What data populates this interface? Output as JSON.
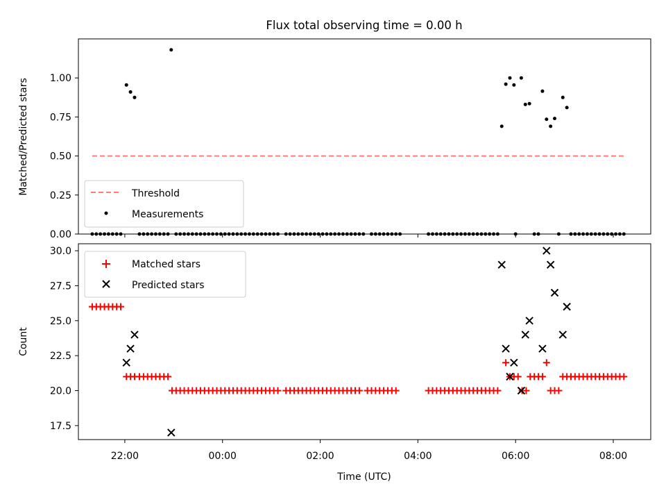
{
  "title": "Flux total observing time = 0.00 h",
  "xlabel": "Time (UTC)",
  "colors": {
    "threshold": "#ff7a7a",
    "measurement": "#000000",
    "matched": "#ff0000",
    "predicted": "#000000"
  },
  "chart_data": [
    {
      "type": "scatter",
      "ylabel": "Matched/Predicted stars",
      "ylim": [
        0,
        1.25
      ],
      "yticks": [
        "0.00",
        "0.25",
        "0.50",
        "0.75",
        "1.00"
      ],
      "xlim": [
        "21:03",
        "08:46"
      ],
      "xticks": [
        "22:00",
        "00:00",
        "02:00",
        "04:00",
        "06:00",
        "08:00"
      ],
      "legend_position": "lower-left",
      "threshold": {
        "name": "Threshold",
        "value": 0.5,
        "x_range": [
          "21:20",
          "08:15"
        ]
      },
      "measurements": {
        "name": "Measurements",
        "points": [
          [
            "21:20",
            0
          ],
          [
            "21:25",
            0
          ],
          [
            "21:30",
            0
          ],
          [
            "21:35",
            0
          ],
          [
            "21:40",
            0
          ],
          [
            "21:45",
            0
          ],
          [
            "21:50",
            0
          ],
          [
            "21:55",
            0
          ],
          [
            "22:02",
            0.955
          ],
          [
            "22:07",
            0.91
          ],
          [
            "22:12",
            0.875
          ],
          [
            "22:18",
            0
          ],
          [
            "22:23",
            0
          ],
          [
            "22:28",
            0
          ],
          [
            "22:33",
            0
          ],
          [
            "22:38",
            0
          ],
          [
            "22:43",
            0
          ],
          [
            "22:48",
            0
          ],
          [
            "22:53",
            0
          ],
          [
            "22:57",
            1.18
          ],
          [
            "23:03",
            0
          ],
          [
            "23:08",
            0
          ],
          [
            "23:13",
            0
          ],
          [
            "23:18",
            0
          ],
          [
            "23:23",
            0
          ],
          [
            "23:28",
            0
          ],
          [
            "23:33",
            0
          ],
          [
            "23:38",
            0
          ],
          [
            "23:43",
            0
          ],
          [
            "23:48",
            0
          ],
          [
            "23:53",
            0
          ],
          [
            "23:58",
            0
          ],
          [
            "00:03",
            0
          ],
          [
            "00:08",
            0
          ],
          [
            "00:13",
            0
          ],
          [
            "00:18",
            0
          ],
          [
            "00:23",
            0
          ],
          [
            "00:28",
            0
          ],
          [
            "00:33",
            0
          ],
          [
            "00:38",
            0
          ],
          [
            "00:43",
            0
          ],
          [
            "00:48",
            0
          ],
          [
            "00:53",
            0
          ],
          [
            "00:58",
            0
          ],
          [
            "01:03",
            0
          ],
          [
            "01:08",
            0
          ],
          [
            "01:18",
            0
          ],
          [
            "01:23",
            0
          ],
          [
            "01:28",
            0
          ],
          [
            "01:33",
            0
          ],
          [
            "01:38",
            0
          ],
          [
            "01:43",
            0
          ],
          [
            "01:48",
            0
          ],
          [
            "01:53",
            0
          ],
          [
            "01:58",
            0
          ],
          [
            "02:03",
            0
          ],
          [
            "02:08",
            0
          ],
          [
            "02:13",
            0
          ],
          [
            "02:18",
            0
          ],
          [
            "02:23",
            0
          ],
          [
            "02:28",
            0
          ],
          [
            "02:33",
            0
          ],
          [
            "02:38",
            0
          ],
          [
            "02:43",
            0
          ],
          [
            "02:48",
            0
          ],
          [
            "02:53",
            0
          ],
          [
            "03:03",
            0
          ],
          [
            "03:08",
            0
          ],
          [
            "03:13",
            0
          ],
          [
            "03:18",
            0
          ],
          [
            "03:23",
            0
          ],
          [
            "03:28",
            0
          ],
          [
            "03:33",
            0
          ],
          [
            "03:38",
            0
          ],
          [
            "04:13",
            0
          ],
          [
            "04:18",
            0
          ],
          [
            "04:23",
            0
          ],
          [
            "04:28",
            0
          ],
          [
            "04:33",
            0
          ],
          [
            "04:38",
            0
          ],
          [
            "04:43",
            0
          ],
          [
            "04:48",
            0
          ],
          [
            "04:53",
            0
          ],
          [
            "04:58",
            0
          ],
          [
            "05:03",
            0
          ],
          [
            "05:08",
            0
          ],
          [
            "05:13",
            0
          ],
          [
            "05:18",
            0
          ],
          [
            "05:23",
            0
          ],
          [
            "05:28",
            0
          ],
          [
            "05:33",
            0
          ],
          [
            "05:38",
            0
          ],
          [
            "05:43",
            0.69
          ],
          [
            "05:48",
            0.96
          ],
          [
            "05:53",
            1.0
          ],
          [
            "05:58",
            0.955
          ],
          [
            "06:00",
            0
          ],
          [
            "06:07",
            1.0
          ],
          [
            "06:12",
            0.83
          ],
          [
            "06:17",
            0.835
          ],
          [
            "06:23",
            0
          ],
          [
            "06:28",
            0
          ],
          [
            "06:33",
            0.915
          ],
          [
            "06:38",
            0.735
          ],
          [
            "06:43",
            0.69
          ],
          [
            "06:48",
            0.74
          ],
          [
            "06:53",
            0
          ],
          [
            "06:58",
            0.875
          ],
          [
            "07:03",
            0.81
          ],
          [
            "07:08",
            0
          ],
          [
            "07:13",
            0
          ],
          [
            "07:18",
            0
          ],
          [
            "07:23",
            0
          ],
          [
            "07:28",
            0
          ],
          [
            "07:33",
            0
          ],
          [
            "07:38",
            0
          ],
          [
            "07:43",
            0
          ],
          [
            "07:48",
            0
          ],
          [
            "07:53",
            0
          ],
          [
            "07:58",
            0
          ],
          [
            "08:03",
            0
          ],
          [
            "08:08",
            0
          ],
          [
            "08:13",
            0
          ]
        ]
      }
    },
    {
      "type": "scatter",
      "ylabel": "Count",
      "ylim": [
        16.5,
        30.5
      ],
      "yticks": [
        "17.5",
        "20.0",
        "22.5",
        "25.0",
        "27.5",
        "30.0"
      ],
      "xlim": [
        "21:03",
        "08:46"
      ],
      "xticks": [
        "22:00",
        "00:00",
        "02:00",
        "04:00",
        "06:00",
        "08:00"
      ],
      "legend_position": "upper-left",
      "series": [
        {
          "name": "Matched stars",
          "marker": "plus",
          "points": [
            [
              "21:20",
              26
            ],
            [
              "21:25",
              26
            ],
            [
              "21:30",
              26
            ],
            [
              "21:35",
              26
            ],
            [
              "21:40",
              26
            ],
            [
              "21:45",
              26
            ],
            [
              "21:50",
              26
            ],
            [
              "21:55",
              26
            ],
            [
              "22:02",
              21
            ],
            [
              "22:07",
              21
            ],
            [
              "22:12",
              21
            ],
            [
              "22:18",
              21
            ],
            [
              "22:23",
              21
            ],
            [
              "22:28",
              21
            ],
            [
              "22:33",
              21
            ],
            [
              "22:38",
              21
            ],
            [
              "22:43",
              21
            ],
            [
              "22:48",
              21
            ],
            [
              "22:53",
              21
            ],
            [
              "22:58",
              20
            ],
            [
              "23:03",
              20
            ],
            [
              "23:08",
              20
            ],
            [
              "23:13",
              20
            ],
            [
              "23:18",
              20
            ],
            [
              "23:23",
              20
            ],
            [
              "23:28",
              20
            ],
            [
              "23:33",
              20
            ],
            [
              "23:38",
              20
            ],
            [
              "23:43",
              20
            ],
            [
              "23:48",
              20
            ],
            [
              "23:53",
              20
            ],
            [
              "23:58",
              20
            ],
            [
              "00:03",
              20
            ],
            [
              "00:08",
              20
            ],
            [
              "00:13",
              20
            ],
            [
              "00:18",
              20
            ],
            [
              "00:23",
              20
            ],
            [
              "00:28",
              20
            ],
            [
              "00:33",
              20
            ],
            [
              "00:38",
              20
            ],
            [
              "00:43",
              20
            ],
            [
              "00:48",
              20
            ],
            [
              "00:53",
              20
            ],
            [
              "00:58",
              20
            ],
            [
              "01:03",
              20
            ],
            [
              "01:08",
              20
            ],
            [
              "01:18",
              20
            ],
            [
              "01:23",
              20
            ],
            [
              "01:28",
              20
            ],
            [
              "01:33",
              20
            ],
            [
              "01:38",
              20
            ],
            [
              "01:43",
              20
            ],
            [
              "01:48",
              20
            ],
            [
              "01:53",
              20
            ],
            [
              "01:58",
              20
            ],
            [
              "02:03",
              20
            ],
            [
              "02:08",
              20
            ],
            [
              "02:13",
              20
            ],
            [
              "02:18",
              20
            ],
            [
              "02:23",
              20
            ],
            [
              "02:28",
              20
            ],
            [
              "02:33",
              20
            ],
            [
              "02:38",
              20
            ],
            [
              "02:43",
              20
            ],
            [
              "02:48",
              20
            ],
            [
              "02:58",
              20
            ],
            [
              "03:03",
              20
            ],
            [
              "03:08",
              20
            ],
            [
              "03:13",
              20
            ],
            [
              "03:18",
              20
            ],
            [
              "03:23",
              20
            ],
            [
              "03:28",
              20
            ],
            [
              "03:33",
              20
            ],
            [
              "04:13",
              20
            ],
            [
              "04:18",
              20
            ],
            [
              "04:23",
              20
            ],
            [
              "04:28",
              20
            ],
            [
              "04:33",
              20
            ],
            [
              "04:38",
              20
            ],
            [
              "04:43",
              20
            ],
            [
              "04:48",
              20
            ],
            [
              "04:53",
              20
            ],
            [
              "04:58",
              20
            ],
            [
              "05:03",
              20
            ],
            [
              "05:08",
              20
            ],
            [
              "05:13",
              20
            ],
            [
              "05:18",
              20
            ],
            [
              "05:23",
              20
            ],
            [
              "05:28",
              20
            ],
            [
              "05:33",
              20
            ],
            [
              "05:38",
              20
            ],
            [
              "05:48",
              22
            ],
            [
              "05:53",
              21
            ],
            [
              "05:58",
              21
            ],
            [
              "06:03",
              21
            ],
            [
              "06:08",
              20
            ],
            [
              "06:13",
              20
            ],
            [
              "06:18",
              21
            ],
            [
              "06:23",
              21
            ],
            [
              "06:28",
              21
            ],
            [
              "06:33",
              21
            ],
            [
              "06:38",
              22
            ],
            [
              "06:43",
              20
            ],
            [
              "06:48",
              20
            ],
            [
              "06:53",
              20
            ],
            [
              "06:58",
              21
            ],
            [
              "07:03",
              21
            ],
            [
              "07:08",
              21
            ],
            [
              "07:13",
              21
            ],
            [
              "07:18",
              21
            ],
            [
              "07:23",
              21
            ],
            [
              "07:28",
              21
            ],
            [
              "07:33",
              21
            ],
            [
              "07:38",
              21
            ],
            [
              "07:43",
              21
            ],
            [
              "07:48",
              21
            ],
            [
              "07:53",
              21
            ],
            [
              "07:58",
              21
            ],
            [
              "08:03",
              21
            ],
            [
              "08:08",
              21
            ],
            [
              "08:13",
              21
            ]
          ]
        },
        {
          "name": "Predicted stars",
          "marker": "x",
          "points": [
            [
              "22:02",
              22
            ],
            [
              "22:07",
              23
            ],
            [
              "22:12",
              24
            ],
            [
              "22:57",
              17
            ],
            [
              "05:43",
              29
            ],
            [
              "05:48",
              23
            ],
            [
              "05:53",
              21
            ],
            [
              "05:58",
              22
            ],
            [
              "06:07",
              20
            ],
            [
              "06:12",
              24
            ],
            [
              "06:17",
              25
            ],
            [
              "06:33",
              23
            ],
            [
              "06:38",
              30
            ],
            [
              "06:43",
              29
            ],
            [
              "06:48",
              27
            ],
            [
              "06:58",
              24
            ],
            [
              "07:03",
              26
            ]
          ]
        }
      ]
    }
  ]
}
